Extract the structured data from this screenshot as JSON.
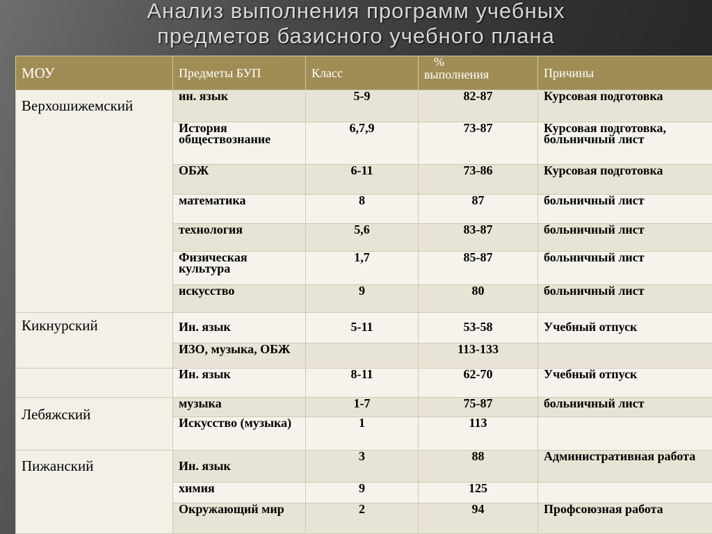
{
  "title": {
    "line1": "Анализ выполнения программ учебных",
    "line2": "предметов базисного учебного плана"
  },
  "table": {
    "headers": {
      "mou": "МОУ",
      "subject": "Предметы  БУП",
      "class": "Класс",
      "percent_symbol": "%",
      "percent": "выполнения",
      "reasons": "Причины"
    },
    "rows": [
      {
        "mou": "Верхошижемский",
        "subject": "ин. язык",
        "class": "5-9",
        "percent": "82-87",
        "reason": "Курсовая подготовка"
      },
      {
        "subject": "История обществознание",
        "class": "6,7,9",
        "percent": "73-87",
        "reason": "Курсовая подготовка, больничный лист"
      },
      {
        "subject": "ОБЖ",
        "class": "6-11",
        "percent": "73-86",
        "reason": "Курсовая подготовка"
      },
      {
        "subject": "математика",
        "class": "8",
        "percent": "87",
        "reason": "больничный лист"
      },
      {
        "subject": "технология",
        "class": "5,6",
        "percent": "83-87",
        "reason": " больничный лист"
      },
      {
        "subject": "Физическая культура",
        "class": "1,7",
        "percent": "85-87",
        "reason": "больничный лист"
      },
      {
        "subject": "искусство",
        "class": "9",
        "percent": "80",
        "reason": "больничный лист"
      },
      {
        "mou": "Кикнурский",
        "subject": "Ин. язык",
        "class": "5-11",
        "percent": "53-58",
        "reason": "Учебный отпуск"
      },
      {
        "subject": "ИЗО, музыка, ОБЖ",
        "class": "",
        "percent": "113-133",
        "reason": ""
      },
      {
        "mou": "",
        "subject": "Ин. язык",
        "class": "8-11",
        "percent": "62-70",
        "reason": "Учебный отпуск"
      },
      {
        "mou": "Лебяжский",
        "subject": "музыка",
        "class": "1-7",
        "percent": "75-87",
        "reason": "больничный лист"
      },
      {
        "subject": "Искусство (музыка)",
        "class": "1",
        "percent": "113",
        "reason": ""
      },
      {
        "mou": "Пижанский",
        "subject": "Ин. язык",
        "class": "3",
        "percent": "88",
        "reason": "Административная работа"
      },
      {
        "subject": "химия",
        "class": "9",
        "percent": "125",
        "reason": ""
      },
      {
        "subject": "Окружающий мир",
        "class": "2",
        "percent": "94",
        "reason": "Профсоюзная работа"
      }
    ]
  }
}
